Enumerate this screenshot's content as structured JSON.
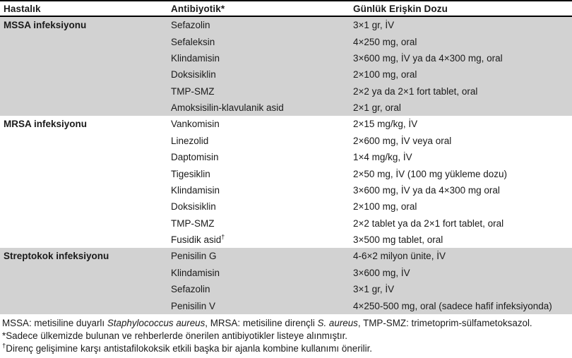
{
  "table": {
    "columns": [
      "Hastalık",
      "Antibiyotik*",
      "Günlük Erişkin Dozu"
    ],
    "sections": [
      {
        "disease": "MSSA infeksiyonu",
        "shaded": true,
        "rows": [
          {
            "antibiotic": "Sefazolin",
            "dose": "3×1 gr, İV"
          },
          {
            "antibiotic": "Sefaleksin",
            "dose": "4×250 mg, oral"
          },
          {
            "antibiotic": "Klindamisin",
            "dose": "3×600 mg, İV ya da 4×300 mg, oral"
          },
          {
            "antibiotic": "Doksisiklin",
            "dose": "2×100 mg, oral"
          },
          {
            "antibiotic": "TMP-SMZ",
            "dose": "2×2 ya da 2×1 fort tablet, oral"
          },
          {
            "antibiotic": "Amoksisilin-klavulanik asid",
            "dose": "2×1 gr, oral"
          }
        ]
      },
      {
        "disease": "MRSA infeksiyonu",
        "shaded": false,
        "rows": [
          {
            "antibiotic": "Vankomisin",
            "dose": "2×15 mg/kg, İV"
          },
          {
            "antibiotic": "Linezolid",
            "dose": "2×600 mg, İV veya oral"
          },
          {
            "antibiotic": "Daptomisin",
            "dose": "1×4 mg/kg, İV"
          },
          {
            "antibiotic": "Tigesiklin",
            "dose": "2×50 mg, İV (100 mg yükleme dozu)"
          },
          {
            "antibiotic": "Klindamisin",
            "dose": "3×600 mg, İV ya da 4×300 mg oral"
          },
          {
            "antibiotic": "Doksisiklin",
            "dose": "2×100 mg, oral"
          },
          {
            "antibiotic": "TMP-SMZ",
            "dose": "2×2 tablet ya da 2×1 fort tablet, oral"
          },
          {
            "antibiotic": "Fusidik asid",
            "marker": "†",
            "dose": "3×500 mg tablet, oral"
          }
        ]
      },
      {
        "disease": "Streptokok infeksiyonu",
        "shaded": true,
        "rows": [
          {
            "antibiotic": "Penisilin G",
            "dose": "4-6×2 milyon ünite, İV"
          },
          {
            "antibiotic": "Klindamisin",
            "dose": "3×600 mg, İV"
          },
          {
            "antibiotic": "Sefazolin",
            "dose": "3×1 gr, İV"
          },
          {
            "antibiotic": "Penisilin V",
            "dose": "4×250-500 mg, oral (sadece hafif infeksiyonda)"
          }
        ]
      }
    ]
  },
  "footnotes": [
    {
      "segments": [
        {
          "text": "MSSA: metisiline duyarlı "
        },
        {
          "text": "Staphylococcus aureus",
          "italic": true
        },
        {
          "text": ", MRSA: metisiline dirençli "
        },
        {
          "text": "S. aureus",
          "italic": true
        },
        {
          "text": ", TMP-SMZ: trimetoprim-sülfametoksazol."
        }
      ]
    },
    {
      "segments": [
        {
          "text": "*Sadece ülkemizde bulunan ve rehberlerde önerilen antibiyotikler listeye alınmıştır."
        }
      ]
    },
    {
      "segments": [
        {
          "text": "†",
          "sup": true
        },
        {
          "text": "Direnç gelişimine karşı antistafilokoksik etkili başka bir ajanla kombine kullanımı önerilir."
        }
      ]
    }
  ],
  "colors": {
    "shaded_row_bg": "#d2d2d2",
    "rule": "#000000",
    "text": "#1a1a1a"
  }
}
